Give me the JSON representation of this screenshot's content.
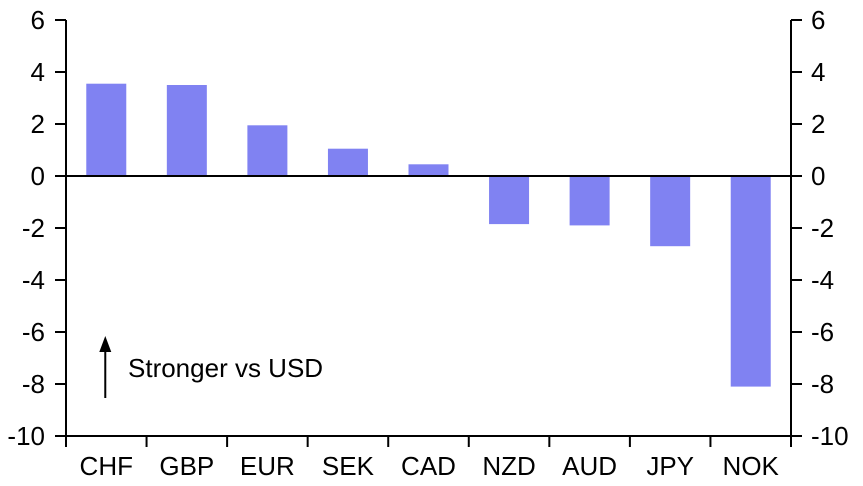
{
  "chart_data": {
    "type": "bar",
    "title": "",
    "xlabel": "",
    "ylabel": "",
    "categories": [
      "CHF",
      "GBP",
      "EUR",
      "SEK",
      "CAD",
      "NZD",
      "AUD",
      "JPY",
      "NOK"
    ],
    "values": [
      3.55,
      3.5,
      1.95,
      1.05,
      0.45,
      -1.85,
      -1.9,
      -2.7,
      -8.1
    ],
    "ylim": [
      -10,
      6
    ],
    "yticks": [
      6,
      4,
      2,
      0,
      -2,
      -4,
      -6,
      -8,
      -10
    ],
    "left_axis": true,
    "right_axis": true,
    "grid": false,
    "legend": false,
    "zero_line": true,
    "annotation": {
      "text": "Stronger vs USD",
      "arrow_direction": "up"
    },
    "colors": {
      "bar": "#8082F2",
      "axis": "#000000",
      "text": "#000000",
      "background": "#FFFFFF"
    }
  }
}
